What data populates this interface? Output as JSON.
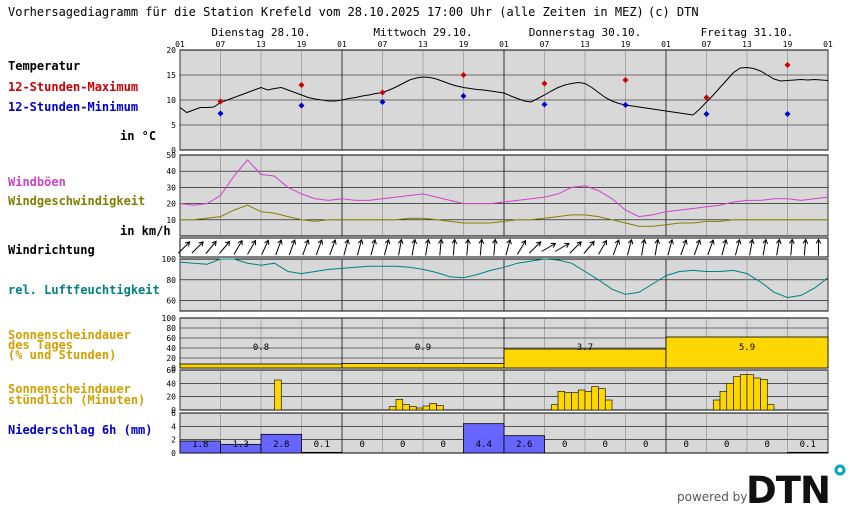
{
  "header": {
    "title": "Vorhersagediagramm für die Station Krefeld vom 28.10.2025 17:00 Uhr (alle Zeiten in MEZ)",
    "copyright": "(c) DTN"
  },
  "brand": {
    "powered_by": "powered by",
    "logo_text": "DTN"
  },
  "days": [
    {
      "label": "Dienstag 28.10."
    },
    {
      "label": "Mittwoch 29.10."
    },
    {
      "label": "Donnerstag 30.10."
    },
    {
      "label": "Freitag 31.10."
    }
  ],
  "hour_ticks": [
    "01",
    "07",
    "13",
    "19",
    "01",
    "07",
    "13",
    "19",
    "01",
    "07",
    "13",
    "19",
    "01",
    "07",
    "13",
    "19",
    "01"
  ],
  "labels": {
    "temp_title": "Temperatur",
    "temp_max": "12-Stunden-Maximum",
    "temp_min": "12-Stunden-Minimum",
    "temp_unit": "in °C",
    "gust": "Windböen",
    "wind_speed": "Windgeschwindigkeit",
    "wind_unit": "in km/h",
    "wind_dir": "Windrichtung",
    "humidity": "rel. Luftfeuchtigkeit",
    "sun_day_1": "Sonnenscheindauer",
    "sun_day_2": "des Tages",
    "sun_day_3": "(% und Stunden)",
    "sun_hour_1": "Sonnenscheindauer",
    "sun_hour_2": "stündlich (Minuten)",
    "precip": "Niederschlag 6h (mm)"
  },
  "colors": {
    "panel_bg": "#d8d8d8",
    "temp": "#000000",
    "max": "#cc0000",
    "min": "#0000cc",
    "gust": "#cc44cc",
    "wind": "#808000",
    "humidity": "#008080",
    "sun": "#ffd700",
    "precip": "#6666ff"
  },
  "chart_data": {
    "type": "line",
    "x_unit": "hours since 28.10. 01:00",
    "x_range": [
      0,
      96
    ],
    "panels": {
      "temperature": {
        "ylim": [
          0,
          20
        ],
        "yticks": [
          0,
          5,
          10,
          15,
          20
        ],
        "x": [
          0,
          1,
          2,
          3,
          4,
          5,
          6,
          7,
          8,
          9,
          10,
          11,
          12,
          13,
          14,
          15,
          16,
          17,
          18,
          19,
          20,
          21,
          22,
          23,
          24,
          25,
          26,
          27,
          28,
          29,
          30,
          31,
          32,
          33,
          34,
          35,
          36,
          37,
          38,
          39,
          40,
          41,
          42,
          43,
          44,
          45,
          46,
          47,
          48,
          49,
          50,
          51,
          52,
          53,
          54,
          55,
          56,
          57,
          58,
          59,
          60,
          61,
          62,
          63,
          64,
          65,
          66,
          67,
          68,
          69,
          70,
          71,
          72,
          73,
          74,
          75,
          76,
          77,
          78,
          79,
          80,
          81,
          82,
          83,
          84,
          85,
          86,
          87,
          88,
          89,
          90,
          91,
          92,
          93,
          94,
          95,
          96
        ],
        "series": [
          {
            "values": [
              8.5,
              7.5,
              8,
              8.5,
              8.5,
              8.6,
              9.5,
              10,
              10.5,
              11,
              11.5,
              12,
              12.5,
              12,
              12.3,
              12.5,
              12,
              11.5,
              11,
              10.5,
              10.2,
              10,
              9.8,
              9.8,
              10,
              10.3,
              10.5,
              10.8,
              11,
              11.3,
              11.5,
              12,
              12.6,
              13.3,
              14,
              14.4,
              14.6,
              14.5,
              14.2,
              13.7,
              13.2,
              12.8,
              12.5,
              12.3,
              12.1,
              12,
              11.8,
              11.6,
              11.4,
              10.8,
              10.3,
              9.8,
              9.6,
              10.3,
              11,
              11.8,
              12.5,
              13,
              13.3,
              13.5,
              13.3,
              12.5,
              11.5,
              10.5,
              9.8,
              9.3,
              9,
              8.8,
              8.6,
              8.4,
              8.2,
              8,
              7.8,
              7.6,
              7.4,
              7.2,
              7,
              8.2,
              9.6,
              11,
              12.5,
              14,
              15.5,
              16.4,
              16.5,
              16.3,
              15.8,
              15,
              14.2,
              13.8,
              13.9,
              14,
              14.1,
              14,
              14.1,
              14,
              13.9
            ]
          }
        ],
        "max_points": [
          {
            "x": 6,
            "y": 9.7
          },
          {
            "x": 18,
            "y": 13
          },
          {
            "x": 30,
            "y": 11.5
          },
          {
            "x": 42,
            "y": 15
          },
          {
            "x": 54,
            "y": 13.3
          },
          {
            "x": 66,
            "y": 14
          },
          {
            "x": 78,
            "y": 10.5
          },
          {
            "x": 90,
            "y": 17
          }
        ],
        "min_points": [
          {
            "x": 6,
            "y": 7.3
          },
          {
            "x": 18,
            "y": 8.9
          },
          {
            "x": 30,
            "y": 9.6
          },
          {
            "x": 42,
            "y": 10.8
          },
          {
            "x": 54,
            "y": 9.1
          },
          {
            "x": 66,
            "y": 9
          },
          {
            "x": 78,
            "y": 7.2
          },
          {
            "x": 90,
            "y": 7.2
          }
        ]
      },
      "wind": {
        "ylim": [
          0,
          50
        ],
        "yticks": [
          10,
          20,
          30,
          40,
          50
        ],
        "x": [
          0,
          2,
          4,
          6,
          8,
          10,
          12,
          14,
          16,
          18,
          20,
          22,
          24,
          26,
          28,
          30,
          32,
          34,
          36,
          38,
          40,
          42,
          44,
          46,
          48,
          50,
          52,
          54,
          56,
          58,
          60,
          62,
          64,
          66,
          68,
          70,
          72,
          74,
          76,
          78,
          80,
          82,
          84,
          86,
          88,
          90,
          92,
          94,
          96
        ],
        "series": [
          {
            "name": "Windböen",
            "values": [
              20,
              19,
              20,
              25,
              37,
              47,
              38,
              37,
              30,
              26,
              23,
              22,
              23,
              22,
              22,
              23,
              24,
              25,
              26,
              24,
              22,
              20,
              20,
              20,
              21,
              22,
              23,
              24,
              26,
              30,
              31,
              28,
              23,
              16,
              12,
              13,
              15,
              16,
              17,
              18,
              19,
              21,
              22,
              22,
              23,
              23,
              22,
              23,
              24
            ]
          },
          {
            "name": "Windgeschwindigkeit",
            "values": [
              10,
              10,
              11,
              12,
              16,
              19,
              15,
              14,
              12,
              10,
              9,
              10,
              10,
              10,
              10,
              10,
              10,
              11,
              11,
              10,
              9,
              8,
              8,
              8,
              9,
              10,
              10,
              11,
              12,
              13,
              13,
              12,
              10,
              8,
              6,
              6,
              7,
              8,
              8,
              9,
              9,
              10,
              10,
              10,
              10,
              10,
              10,
              10,
              10
            ]
          }
        ]
      },
      "wind_direction": {
        "x": [
          0,
          2,
          4,
          6,
          8,
          10,
          12,
          14,
          16,
          18,
          20,
          22,
          24,
          26,
          28,
          30,
          32,
          34,
          36,
          38,
          40,
          42,
          44,
          46,
          48,
          50,
          52,
          54,
          56,
          58,
          60,
          62,
          64,
          66,
          68,
          70,
          72,
          74,
          76,
          78,
          80,
          82,
          84,
          86,
          88,
          90,
          92,
          94
        ],
        "angles_deg": [
          45,
          45,
          40,
          40,
          30,
          30,
          25,
          20,
          20,
          20,
          20,
          20,
          15,
          15,
          15,
          15,
          10,
          10,
          10,
          5,
          5,
          5,
          5,
          5,
          15,
          30,
          45,
          60,
          60,
          45,
          40,
          30,
          20,
          15,
          10,
          10,
          15,
          20,
          20,
          20,
          15,
          15,
          10,
          10,
          10,
          5,
          5,
          0
        ]
      },
      "humidity": {
        "ylim": [
          50,
          100
        ],
        "yticks": [
          60,
          80,
          100
        ],
        "x": [
          0,
          2,
          4,
          6,
          8,
          10,
          12,
          14,
          16,
          18,
          20,
          22,
          24,
          26,
          28,
          30,
          32,
          34,
          36,
          38,
          40,
          42,
          44,
          46,
          48,
          50,
          52,
          54,
          56,
          58,
          60,
          62,
          64,
          66,
          68,
          70,
          72,
          74,
          76,
          78,
          80,
          82,
          84,
          86,
          88,
          90,
          92,
          94,
          96
        ],
        "series": [
          {
            "values": [
              97,
              96,
              95,
              100,
              100,
              96,
              94,
              96,
              88,
              86,
              88,
              90,
              91,
              92,
              93,
              93,
              93,
              92,
              90,
              87,
              83,
              82,
              85,
              89,
              92,
              96,
              98,
              100,
              99,
              96,
              88,
              80,
              71,
              66,
              68,
              76,
              84,
              88,
              89,
              88,
              88,
              89,
              86,
              78,
              68,
              63,
              65,
              72,
              82
            ]
          }
        ]
      },
      "sunshine_daily": {
        "ylim": [
          0,
          100
        ],
        "yticks": [
          0,
          20,
          40,
          60,
          80,
          100
        ],
        "days": [
          {
            "percent": 8,
            "hours": "0.8"
          },
          {
            "percent": 9,
            "hours": "0.9"
          },
          {
            "percent": 38,
            "hours": "3.7"
          },
          {
            "percent": 62,
            "hours": "5.9"
          }
        ]
      },
      "sunshine_hourly": {
        "ylim": [
          0,
          60
        ],
        "yticks": [
          0,
          20,
          40,
          60
        ],
        "bars": [
          {
            "x": 14.5,
            "v": 45
          },
          {
            "x": 31.5,
            "v": 5
          },
          {
            "x": 32.5,
            "v": 16
          },
          {
            "x": 33.5,
            "v": 8
          },
          {
            "x": 34.5,
            "v": 5
          },
          {
            "x": 35.5,
            "v": 3
          },
          {
            "x": 36.5,
            "v": 6
          },
          {
            "x": 37.5,
            "v": 10
          },
          {
            "x": 38.5,
            "v": 7
          },
          {
            "x": 55.5,
            "v": 8
          },
          {
            "x": 56.5,
            "v": 28
          },
          {
            "x": 57.5,
            "v": 26
          },
          {
            "x": 58.5,
            "v": 26
          },
          {
            "x": 59.5,
            "v": 30
          },
          {
            "x": 60.5,
            "v": 28
          },
          {
            "x": 61.5,
            "v": 35
          },
          {
            "x": 62.5,
            "v": 32
          },
          {
            "x": 63.5,
            "v": 15
          },
          {
            "x": 79.5,
            "v": 15
          },
          {
            "x": 80.5,
            "v": 28
          },
          {
            "x": 81.5,
            "v": 40
          },
          {
            "x": 82.5,
            "v": 50
          },
          {
            "x": 83.5,
            "v": 53
          },
          {
            "x": 84.5,
            "v": 53
          },
          {
            "x": 85.5,
            "v": 48
          },
          {
            "x": 86.5,
            "v": 46
          },
          {
            "x": 87.5,
            "v": 8
          }
        ]
      },
      "precipitation": {
        "ylim": [
          0,
          6
        ],
        "yticks": [
          0,
          2,
          4,
          6
        ],
        "bars": [
          {
            "x0": 0,
            "x1": 6,
            "value": 1.8,
            "label": "1.8"
          },
          {
            "x0": 6,
            "x1": 12,
            "value": 1.3,
            "label": "1.3"
          },
          {
            "x0": 12,
            "x1": 18,
            "value": 2.8,
            "label": "2.8"
          },
          {
            "x0": 18,
            "x1": 24,
            "value": 0.1,
            "label": "0.1"
          },
          {
            "x0": 24,
            "x1": 30,
            "value": 0,
            "label": "0"
          },
          {
            "x0": 30,
            "x1": 36,
            "value": 0,
            "label": "0"
          },
          {
            "x0": 36,
            "x1": 42,
            "value": 0,
            "label": "0"
          },
          {
            "x0": 42,
            "x1": 48,
            "value": 4.4,
            "label": "4.4"
          },
          {
            "x0": 48,
            "x1": 54,
            "value": 2.6,
            "label": "2.6"
          },
          {
            "x0": 54,
            "x1": 60,
            "value": 0,
            "label": "0"
          },
          {
            "x0": 60,
            "x1": 66,
            "value": 0,
            "label": "0"
          },
          {
            "x0": 66,
            "x1": 72,
            "value": 0,
            "label": "0"
          },
          {
            "x0": 72,
            "x1": 78,
            "value": 0,
            "label": "0"
          },
          {
            "x0": 78,
            "x1": 84,
            "value": 0,
            "label": "0"
          },
          {
            "x0": 84,
            "x1": 90,
            "value": 0,
            "label": "0"
          },
          {
            "x0": 90,
            "x1": 96,
            "value": 0.1,
            "label": "0.1"
          }
        ]
      }
    }
  }
}
